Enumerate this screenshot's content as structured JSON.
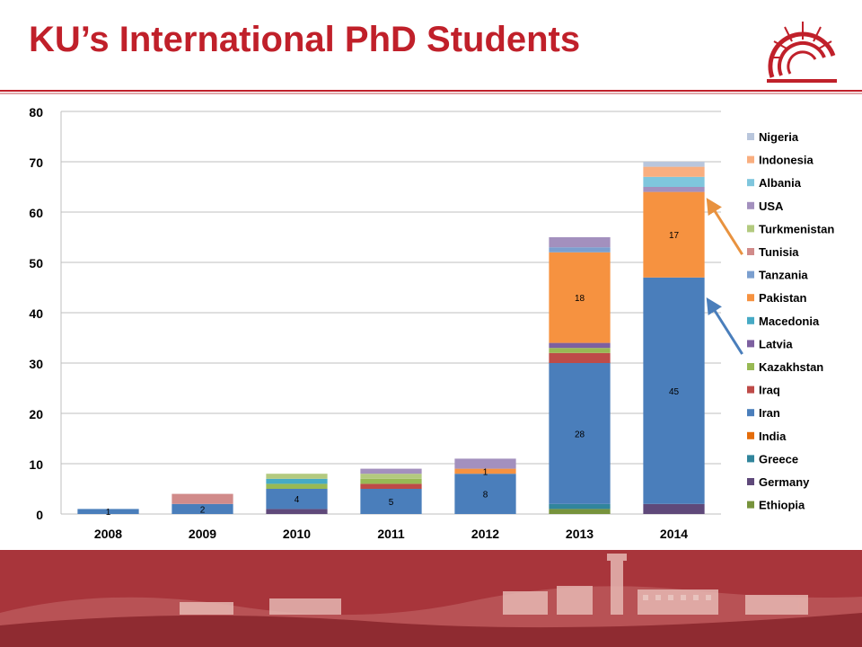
{
  "header": {
    "title": "KU’s International PhD Students"
  },
  "colors": {
    "brand_red": "#c0202a",
    "footer_red": "#a52a31"
  },
  "logo": {
    "icon": "university-emblem-icon"
  },
  "footer": {
    "image": "campus-photo-banner"
  },
  "chart_data": {
    "type": "bar",
    "stacked": true,
    "categories": [
      "2008",
      "2009",
      "2010",
      "2011",
      "2012",
      "2013",
      "2014"
    ],
    "ylim": [
      0,
      80
    ],
    "yticks": [
      "0",
      "10",
      "20",
      "30",
      "40",
      "50",
      "60",
      "70",
      "80"
    ],
    "grid": true,
    "legend_position": "right",
    "series": [
      {
        "name": "Ethiopia",
        "color": "#77933c",
        "values": [
          0,
          0,
          0,
          0,
          0,
          1,
          0
        ]
      },
      {
        "name": "Germany",
        "color": "#5f497a",
        "values": [
          0,
          0,
          1,
          0,
          0,
          0,
          2
        ]
      },
      {
        "name": "Greece",
        "color": "#31859c",
        "values": [
          0,
          0,
          0,
          0,
          0,
          1,
          0
        ]
      },
      {
        "name": "India",
        "color": "#e46c0a",
        "values": [
          0,
          0,
          0,
          0,
          0,
          0,
          0
        ]
      },
      {
        "name": "Iran",
        "color": "#4a7ebb",
        "values": [
          1,
          2,
          4,
          5,
          8,
          28,
          45
        ]
      },
      {
        "name": "Iraq",
        "color": "#be4b48",
        "values": [
          0,
          0,
          0,
          1,
          0,
          2,
          0
        ]
      },
      {
        "name": "Kazakhstan",
        "color": "#98b954",
        "values": [
          0,
          0,
          1,
          1,
          0,
          1,
          0
        ]
      },
      {
        "name": "Latvia",
        "color": "#7d60a0",
        "values": [
          0,
          0,
          0,
          0,
          0,
          1,
          0
        ]
      },
      {
        "name": "Macedonia",
        "color": "#46aac5",
        "values": [
          0,
          0,
          1,
          0,
          0,
          0,
          0
        ]
      },
      {
        "name": "Pakistan",
        "color": "#f69240",
        "values": [
          0,
          0,
          0,
          0,
          1,
          18,
          17
        ]
      },
      {
        "name": "Tanzania",
        "color": "#7b9fcf",
        "values": [
          0,
          0,
          0,
          0,
          0,
          1,
          0
        ]
      },
      {
        "name": "Tunisia",
        "color": "#d18b8a",
        "values": [
          0,
          2,
          0,
          0,
          0,
          0,
          0
        ]
      },
      {
        "name": "Turkmenistan",
        "color": "#b3ca7f",
        "values": [
          0,
          0,
          1,
          1,
          0,
          0,
          0
        ]
      },
      {
        "name": "USA",
        "color": "#a390be",
        "values": [
          0,
          0,
          0,
          1,
          2,
          2,
          1
        ]
      },
      {
        "name": "Albania",
        "color": "#7fc6dd",
        "values": [
          0,
          0,
          0,
          0,
          0,
          0,
          2
        ]
      },
      {
        "name": "Indonesia",
        "color": "#f9ae7f",
        "values": [
          0,
          0,
          0,
          0,
          0,
          0,
          2
        ]
      },
      {
        "name": "Nigeria",
        "color": "#b9c6dc",
        "values": [
          0,
          0,
          0,
          0,
          0,
          0,
          1
        ]
      }
    ],
    "data_labels": [
      {
        "category": "2008",
        "series": "Iran",
        "text": "1"
      },
      {
        "category": "2009",
        "series": "Iran",
        "text": "2"
      },
      {
        "category": "2010",
        "series": "Iran",
        "text": "4"
      },
      {
        "category": "2011",
        "series": "Iran",
        "text": "5"
      },
      {
        "category": "2012",
        "series": "Iran",
        "text": "8"
      },
      {
        "category": "2012",
        "series": "Pakistan",
        "text": "1"
      },
      {
        "category": "2013",
        "series": "Iran",
        "text": "28"
      },
      {
        "category": "2013",
        "series": "Pakistan",
        "text": "18"
      },
      {
        "category": "2014",
        "series": "Iran",
        "text": "45"
      },
      {
        "category": "2014",
        "series": "Pakistan",
        "text": "17"
      }
    ],
    "annotations": [
      {
        "type": "arrow",
        "color": "#e8923f",
        "points_to": {
          "category": "2014",
          "series": "Pakistan"
        }
      },
      {
        "type": "arrow",
        "color": "#4a7ebb",
        "points_to": {
          "category": "2014",
          "series": "Iran"
        }
      }
    ]
  }
}
